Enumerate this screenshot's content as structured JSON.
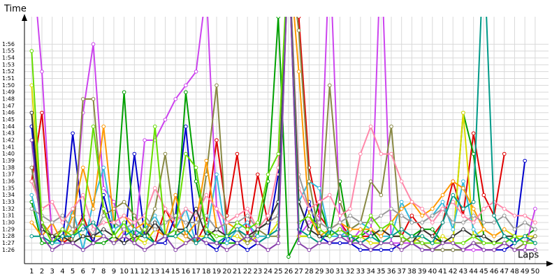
{
  "chart_data": {
    "type": "line",
    "ylabel": "Time",
    "xlabel": "Laps",
    "grid": true,
    "xlim": [
      0.3,
      51.3
    ],
    "ylim": [
      84,
      120
    ],
    "x": [
      1,
      2,
      3,
      4,
      5,
      6,
      7,
      8,
      9,
      10,
      11,
      12,
      13,
      14,
      15,
      16,
      17,
      18,
      19,
      20,
      21,
      22,
      23,
      24,
      25,
      26,
      27,
      28,
      29,
      30,
      31,
      32,
      33,
      34,
      35,
      36,
      37,
      38,
      39,
      40,
      41,
      42,
      43,
      44,
      45,
      46,
      47,
      48,
      49,
      50
    ],
    "xticks": [
      1,
      2,
      3,
      4,
      5,
      6,
      7,
      8,
      9,
      10,
      11,
      12,
      13,
      14,
      15,
      16,
      17,
      18,
      19,
      20,
      21,
      22,
      23,
      24,
      25,
      26,
      27,
      28,
      29,
      30,
      31,
      32,
      33,
      34,
      35,
      36,
      37,
      38,
      39,
      40,
      41,
      42,
      43,
      44,
      45,
      46,
      47,
      48,
      49,
      50
    ],
    "yticks": [
      {
        "value": 86,
        "label": "1:26"
      },
      {
        "value": 87,
        "label": "1:27"
      },
      {
        "value": 88,
        "label": "1:28"
      },
      {
        "value": 89,
        "label": "1:29"
      },
      {
        "value": 90,
        "label": "1:30"
      },
      {
        "value": 91,
        "label": "1:31"
      },
      {
        "value": 92,
        "label": "1:32"
      },
      {
        "value": 93,
        "label": "1:33"
      },
      {
        "value": 94,
        "label": "1:34"
      },
      {
        "value": 95,
        "label": "1:35"
      },
      {
        "value": 96,
        "label": "1:36"
      },
      {
        "value": 97,
        "label": "1:37"
      },
      {
        "value": 98,
        "label": "1:38"
      },
      {
        "value": 99,
        "label": "1:39"
      },
      {
        "value": 100,
        "label": "1:40"
      },
      {
        "value": 101,
        "label": "1:41"
      },
      {
        "value": 102,
        "label": "1:42"
      },
      {
        "value": 103,
        "label": "1:43"
      },
      {
        "value": 104,
        "label": "1:44"
      },
      {
        "value": 105,
        "label": "1:45"
      },
      {
        "value": 106,
        "label": "1:46"
      },
      {
        "value": 107,
        "label": "1:47"
      },
      {
        "value": 108,
        "label": "1:48"
      },
      {
        "value": 109,
        "label": "1:49"
      },
      {
        "value": 110,
        "label": "1:50"
      },
      {
        "value": 111,
        "label": "1:51"
      },
      {
        "value": 112,
        "label": "1:52"
      },
      {
        "value": 113,
        "label": "1:53"
      },
      {
        "value": 114,
        "label": "1:54"
      },
      {
        "value": 115,
        "label": "1:55"
      },
      {
        "value": 116,
        "label": "1:56"
      }
    ],
    "series": [
      {
        "color": "#e00000",
        "values": [
          96,
          106,
          88,
          87,
          88,
          91,
          87,
          88,
          87,
          88,
          87,
          89,
          87,
          92,
          89,
          88,
          87,
          90,
          102,
          91,
          100,
          88,
          97,
          90,
          91,
          130,
          120,
          98,
          91,
          89,
          90,
          88,
          88,
          88,
          89,
          88,
          88,
          91,
          89,
          88,
          90,
          96,
          91,
          103,
          94,
          91,
          100,
          null,
          null,
          null
        ]
      },
      {
        "color": "#0000cc",
        "values": [
          104,
          89,
          88,
          87,
          103,
          90,
          87,
          94,
          88,
          87,
          100,
          88,
          87,
          87,
          91,
          104,
          88,
          87,
          86,
          88,
          87,
          86,
          87,
          88,
          97,
          130,
          88,
          93,
          88,
          87,
          87,
          87,
          86,
          86,
          86,
          86,
          87,
          87,
          86,
          86,
          86,
          86,
          86,
          87,
          86,
          86,
          86,
          87,
          99,
          null
        ]
      },
      {
        "color": "#00a000",
        "values": [
          93,
          87,
          87,
          88,
          87,
          88,
          87,
          87,
          88,
          109,
          87,
          89,
          87,
          88,
          88,
          109,
          96,
          89,
          87,
          87,
          87,
          88,
          88,
          96,
          120,
          85,
          88,
          88,
          93,
          88,
          96,
          87,
          88,
          89,
          87,
          87,
          87,
          88,
          89,
          89,
          87,
          87,
          106,
          100,
          88,
          87,
          88,
          87,
          88,
          89
        ]
      },
      {
        "color": "#cc44ee",
        "values": [
          130,
          112,
          87,
          87,
          87,
          106,
          116,
          95,
          93,
          88,
          87,
          102,
          102,
          105,
          108,
          110,
          112,
          124,
          92,
          87,
          89,
          90,
          87,
          86,
          87,
          130,
          88,
          90,
          90,
          130,
          90,
          87,
          89,
          88,
          130,
          87,
          87,
          87,
          87,
          86,
          87,
          87,
          86,
          86,
          86,
          86,
          87,
          86,
          86,
          92
        ]
      },
      {
        "color": "#dddd00",
        "values": [
          110,
          89,
          88,
          88,
          89,
          88,
          88,
          88,
          87,
          89,
          88,
          87,
          89,
          88,
          88,
          87,
          88,
          88,
          89,
          88,
          88,
          87,
          88,
          88,
          90,
          130,
          88,
          88,
          87,
          89,
          88,
          88,
          88,
          87,
          87,
          88,
          88,
          87,
          88,
          87,
          88,
          87,
          106,
          88,
          89,
          88,
          89,
          88,
          88,
          88
        ]
      },
      {
        "color": "#33bbdd",
        "values": [
          94,
          88,
          87,
          87,
          92,
          86,
          93,
          98,
          89,
          90,
          88,
          89,
          91,
          88,
          89,
          92,
          87,
          88,
          97,
          87,
          89,
          90,
          88,
          88,
          89,
          130,
          93,
          96,
          95,
          88,
          88,
          89,
          90,
          89,
          88,
          88,
          93,
          90,
          90,
          91,
          93,
          89,
          96,
          89,
          87,
          87,
          87,
          88,
          87,
          87
        ]
      },
      {
        "color": "#888844",
        "values": [
          98,
          90,
          88,
          89,
          87,
          108,
          108,
          91,
          92,
          93,
          91,
          88,
          92,
          100,
          89,
          88,
          87,
          97,
          110,
          88,
          89,
          87,
          89,
          88,
          88,
          130,
          118,
          96,
          88,
          110,
          93,
          89,
          90,
          96,
          94,
          104,
          87,
          88,
          87,
          86,
          86,
          86,
          86,
          87,
          87,
          87,
          87,
          86,
          87,
          88
        ]
      },
      {
        "color": "#ff9900",
        "values": [
          90,
          88,
          90,
          87,
          91,
          98,
          92,
          104,
          90,
          91,
          89,
          90,
          89,
          88,
          94,
          88,
          90,
          99,
          89,
          90,
          89,
          88,
          89,
          90,
          91,
          130,
          112,
          91,
          88,
          89,
          90,
          89,
          89,
          89,
          88,
          90,
          92,
          93,
          91,
          92,
          94,
          96,
          95,
          92,
          89,
          88,
          89,
          null,
          null,
          null
        ]
      },
      {
        "color": "#999999",
        "values": [
          92,
          91,
          90,
          91,
          89,
          90,
          88,
          91,
          90,
          89,
          90,
          91,
          89,
          90,
          91,
          90,
          90,
          91,
          89,
          90,
          90,
          91,
          89,
          90,
          91,
          130,
          97,
          92,
          90,
          89,
          90,
          91,
          90,
          90,
          91,
          92,
          91,
          90,
          90,
          91,
          92,
          90,
          90,
          91,
          90,
          90,
          91,
          89,
          90,
          89
        ]
      },
      {
        "color": "#ff88aa",
        "values": [
          96,
          92,
          93,
          90,
          92,
          94,
          89,
          90,
          90,
          91,
          90,
          91,
          95,
          92,
          90,
          92,
          91,
          94,
          92,
          90,
          91,
          92,
          89,
          91,
          98,
          130,
          95,
          92,
          93,
          94,
          91,
          92,
          100,
          104,
          100,
          100,
          96,
          93,
          92,
          90,
          92,
          93,
          91,
          90,
          92,
          93,
          92,
          91,
          91,
          90
        ]
      },
      {
        "color": "#333333",
        "values": [
          106,
          89,
          88,
          88,
          87,
          88,
          88,
          89,
          88,
          87,
          88,
          88,
          90,
          88,
          89,
          89,
          92,
          88,
          89,
          88,
          89,
          88,
          89,
          90,
          93,
          130,
          93,
          89,
          88,
          88,
          89,
          88,
          87,
          88,
          89,
          88,
          88,
          87,
          89,
          88,
          87,
          88,
          89,
          88,
          88,
          87,
          88,
          88,
          87,
          87
        ]
      },
      {
        "color": "#66dd00",
        "values": [
          115,
          90,
          87,
          89,
          88,
          90,
          104,
          92,
          88,
          90,
          87,
          89,
          104,
          88,
          89,
          100,
          98,
          89,
          88,
          88,
          90,
          89,
          90,
          97,
          100,
          130,
          90,
          91,
          89,
          88,
          89,
          88,
          88,
          91,
          89,
          90,
          88,
          87,
          87,
          87,
          87,
          87,
          87,
          88,
          87,
          87,
          87,
          88,
          87,
          87
        ]
      },
      {
        "color": "#009988",
        "values": [
          88,
          88,
          87,
          88,
          88,
          89,
          90,
          88,
          87,
          88,
          89,
          88,
          87,
          88,
          88,
          89,
          87,
          88,
          87,
          88,
          89,
          88,
          87,
          88,
          89,
          130,
          89,
          88,
          87,
          89,
          88,
          88,
          87,
          88,
          87,
          88,
          89,
          88,
          88,
          87,
          90,
          94,
          92,
          93,
          130,
          91,
          88,
          87,
          88,
          87
        ]
      },
      {
        "color": "#8844aa",
        "values": [
          102,
          88,
          86,
          87,
          87,
          86,
          87,
          88,
          87,
          88,
          87,
          86,
          87,
          88,
          86,
          87,
          88,
          87,
          87,
          86,
          87,
          88,
          87,
          86,
          87,
          130,
          87,
          86,
          87,
          87,
          88,
          87,
          87,
          86,
          87,
          87,
          86,
          87,
          86,
          86,
          87,
          87,
          86,
          87,
          86,
          86,
          87,
          86,
          86,
          86
        ]
      }
    ]
  }
}
